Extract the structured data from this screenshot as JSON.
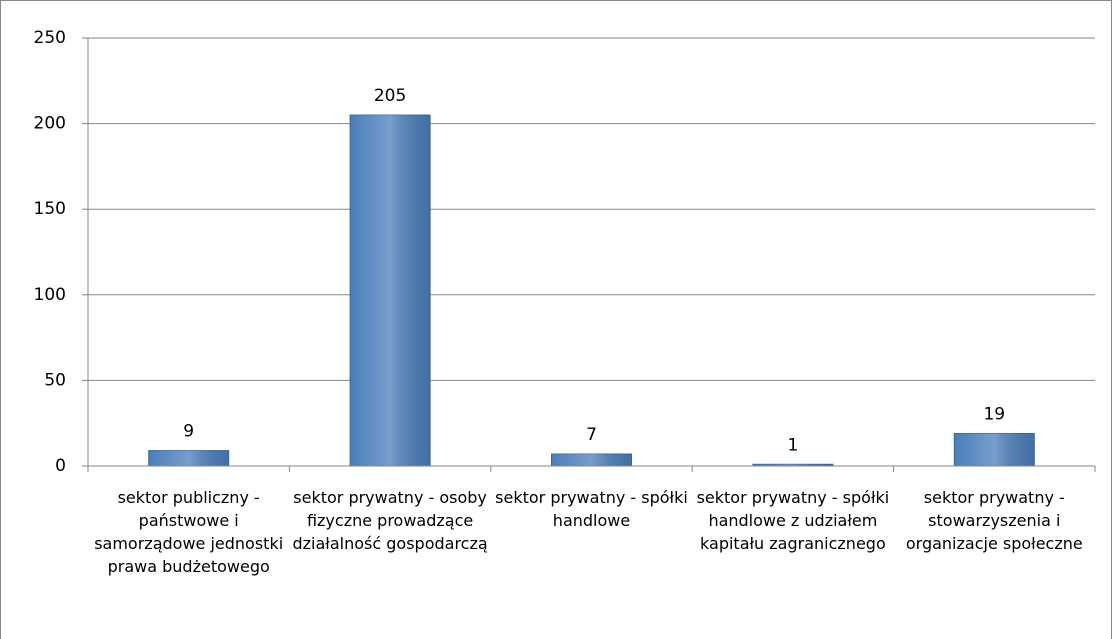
{
  "chart_data": {
    "type": "bar",
    "categories": [
      "sektor publiczny - państwowe i samorządowe jednostki prawa budżetowego",
      "sektor prywatny - osoby fizyczne prowadzące działalność gospodarczą",
      "sektor prywatny - spółki handlowe",
      "sektor prywatny - spółki handlowe z udziałem kapitału zagranicznego",
      "sektor prywatny - stowarzyszenia i organizacje społeczne"
    ],
    "values": [
      9,
      205,
      7,
      1,
      19
    ],
    "color": "#4a7ebb",
    "ylim": [
      0,
      250
    ],
    "yticks": [
      0,
      50,
      100,
      150,
      200,
      250
    ],
    "grid": true
  }
}
